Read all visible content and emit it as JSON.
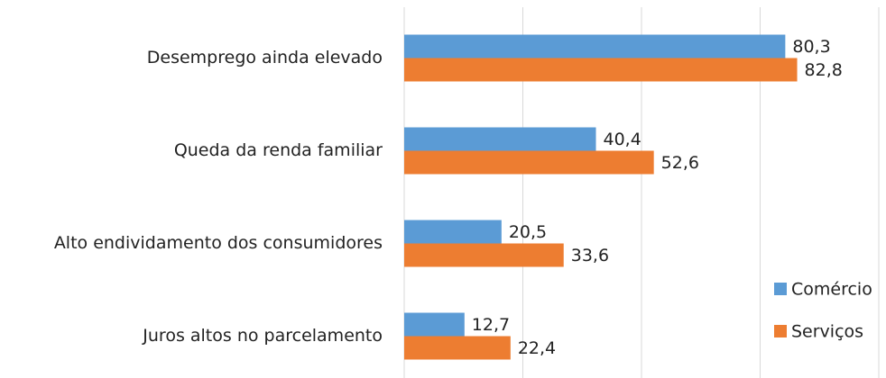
{
  "chart_data": {
    "type": "hbar",
    "categories": [
      "Desemprego ainda elevado",
      "Queda da renda familiar",
      "Alto endividamento dos consumidores",
      "Juros altos no parcelamento"
    ],
    "series": [
      {
        "name": "Comércio",
        "color": "#5b9bd5",
        "values": [
          80.3,
          40.4,
          20.5,
          12.7
        ],
        "value_labels": [
          "80,3",
          "40,4",
          "20,5",
          "12,7"
        ]
      },
      {
        "name": "Serviços",
        "color": "#ed7d31",
        "values": [
          82.8,
          52.6,
          33.6,
          22.4
        ],
        "value_labels": [
          "82,8",
          "52,6",
          "33,6",
          "22,4"
        ]
      }
    ],
    "xlim": [
      0,
      100
    ],
    "xticks": [
      0,
      25,
      50,
      75,
      100
    ],
    "grid": true,
    "legend": "right"
  }
}
